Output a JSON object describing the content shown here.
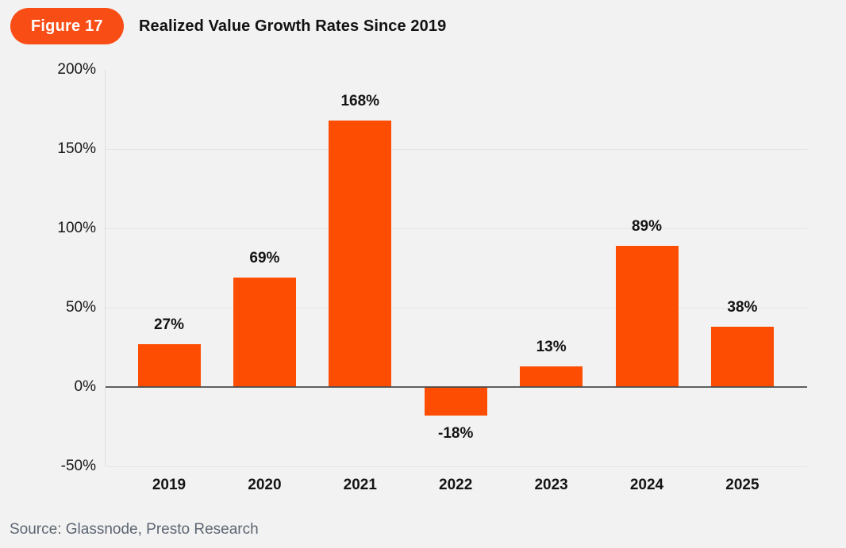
{
  "figure_badge": "Figure 17",
  "title": "Realized Value Growth Rates Since 2019",
  "source": "Source: Glassnode, Presto Research",
  "colors": {
    "bar": "#FC4D02",
    "badge": "#F94D16",
    "background": "#F2F2F3",
    "gridline": "#E5E5E5",
    "axis_line": "#DEDEDF",
    "zero_line": "#4A4A4A",
    "label_text": "#141414",
    "source_text": "#5D6672"
  },
  "chart_data": {
    "type": "bar",
    "title": "Realized Value Growth Rates Since 2019",
    "categories": [
      "2019",
      "2020",
      "2021",
      "2022",
      "2023",
      "2024",
      "2025"
    ],
    "values": [
      27,
      69,
      168,
      -18,
      13,
      89,
      38
    ],
    "value_labels": [
      "27%",
      "69%",
      "168%",
      "-18%",
      "13%",
      "89%",
      "38%"
    ],
    "xlabel": "",
    "ylabel": "",
    "ylim": [
      -50,
      200
    ],
    "yticks": [
      200,
      150,
      100,
      50,
      0,
      -50
    ],
    "ytick_labels": [
      "200%",
      "150%",
      "100%",
      "50%",
      "0%",
      "-50%"
    ],
    "grid": "horizontal",
    "legend": "none",
    "bar_color": "#FC4D02"
  }
}
